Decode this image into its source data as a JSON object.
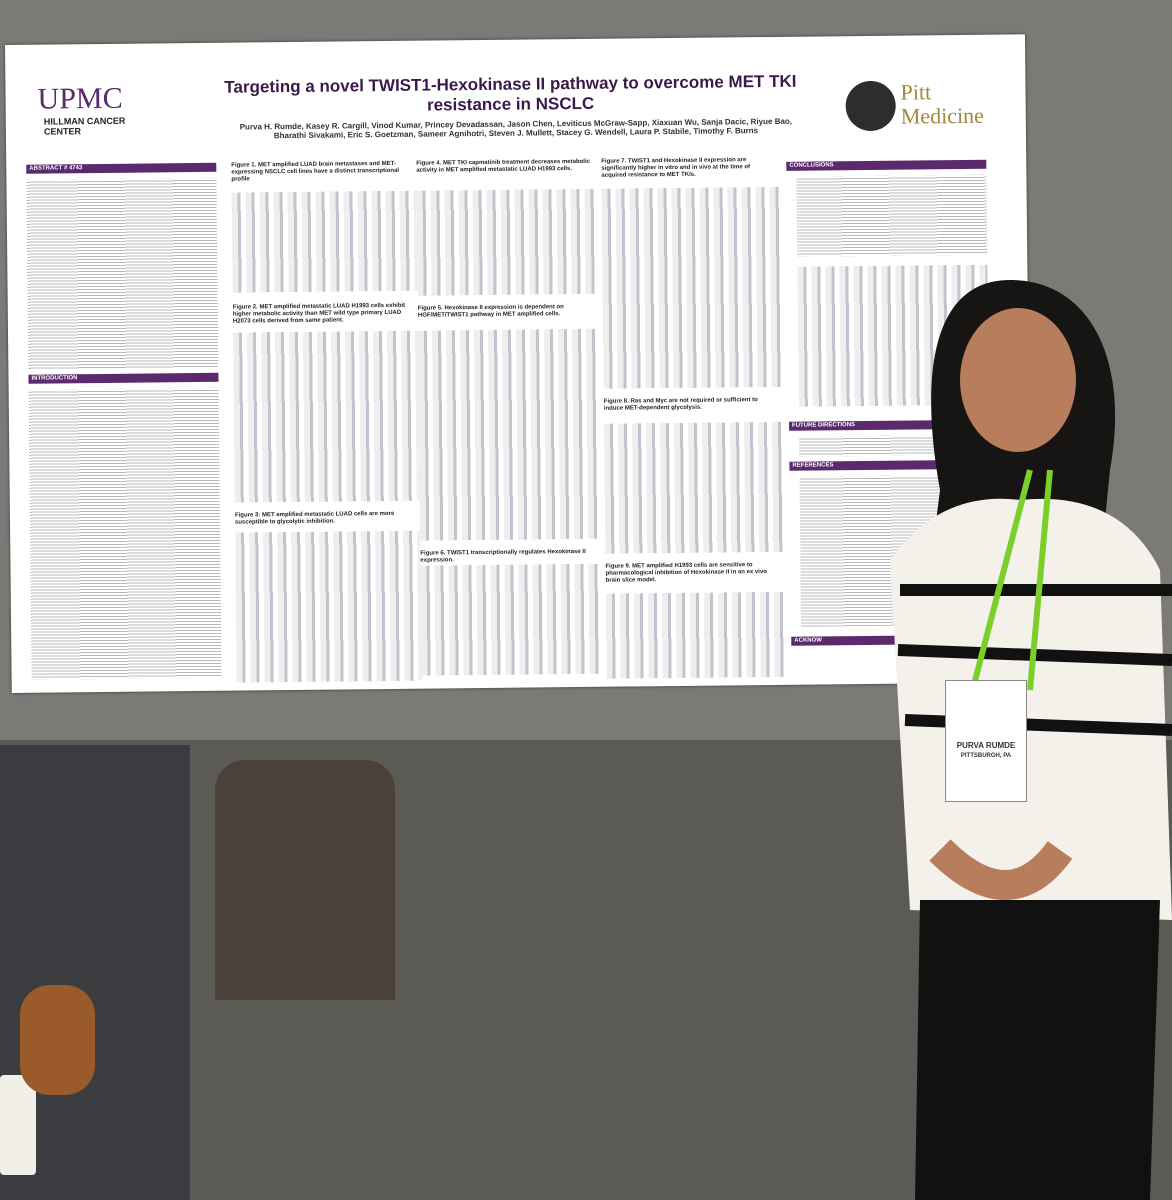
{
  "poster": {
    "logo_left": {
      "name": "UPMC",
      "sub": "HILLMAN CANCER CENTER"
    },
    "title": "Targeting a novel TWIST1-Hexokinase II pathway to overcome MET TKI resistance in NSCLC",
    "authors": "Purva H. Rumde, Kasey R. Cargill, Vinod Kumar, Princey Devadassan, Jason Chen, Leviticus McGraw-Sapp, Xiaxuan Wu, Sanja Dacic, Riyue Bao, Bharathi Sivakami, Eric S. Goetzman, Sameer Agnihotri, Steven J. Mullett, Stacey G. Wendell, Laura P. Stabile, Timothy F. Burns",
    "logo_right": "Pitt Medicine",
    "sections": [
      "ABSTRACT # 4743",
      "INTRODUCTION",
      "Figure 1. MET amplified LUAD brain metastases and MET-expressing NSCLC cell lines have a distinct transcriptional profile",
      "Figure 2. MET amplified metastatic LUAD H1993 cells exhibit higher metabolic activity than MET wild type primary LUAD H2073 cells derived from same patient.",
      "Figure 3: MET amplified metastatic LUAD cells are more susceptible to glycolytic inhibition.",
      "Figure 4. MET TKI capmatinib treatment decreases metabolic activity in MET amplified metastatic LUAD H1993 cells.",
      "Figure 5. Hexokinase II expression is dependent on HGF/MET/TWIST1 pathway in MET amplified cells.",
      "Figure 6. TWIST1 transcriptionally regulates Hexokinase II expression.",
      "Figure 7. TWIST1 and Hexokinase II expression are significantly higher in vitro and in vivo at the time of acquired resistance to MET TKIs.",
      "Figure 8. Ras and Myc are not required or sufficient to induce MET-dependent glycolysis.",
      "Figure 9. MET amplified H1993 cells are sensitive to pharmacological inhibition of Hexokinase II in an ex vivo brain slice model.",
      "CONCLUSIONS",
      "FUTURE DIRECTIONS",
      "REFERENCES",
      "ACKNOW"
    ]
  },
  "badge": {
    "name": "PURVA RUMDE",
    "city": "PITTSBURGH, PA"
  }
}
